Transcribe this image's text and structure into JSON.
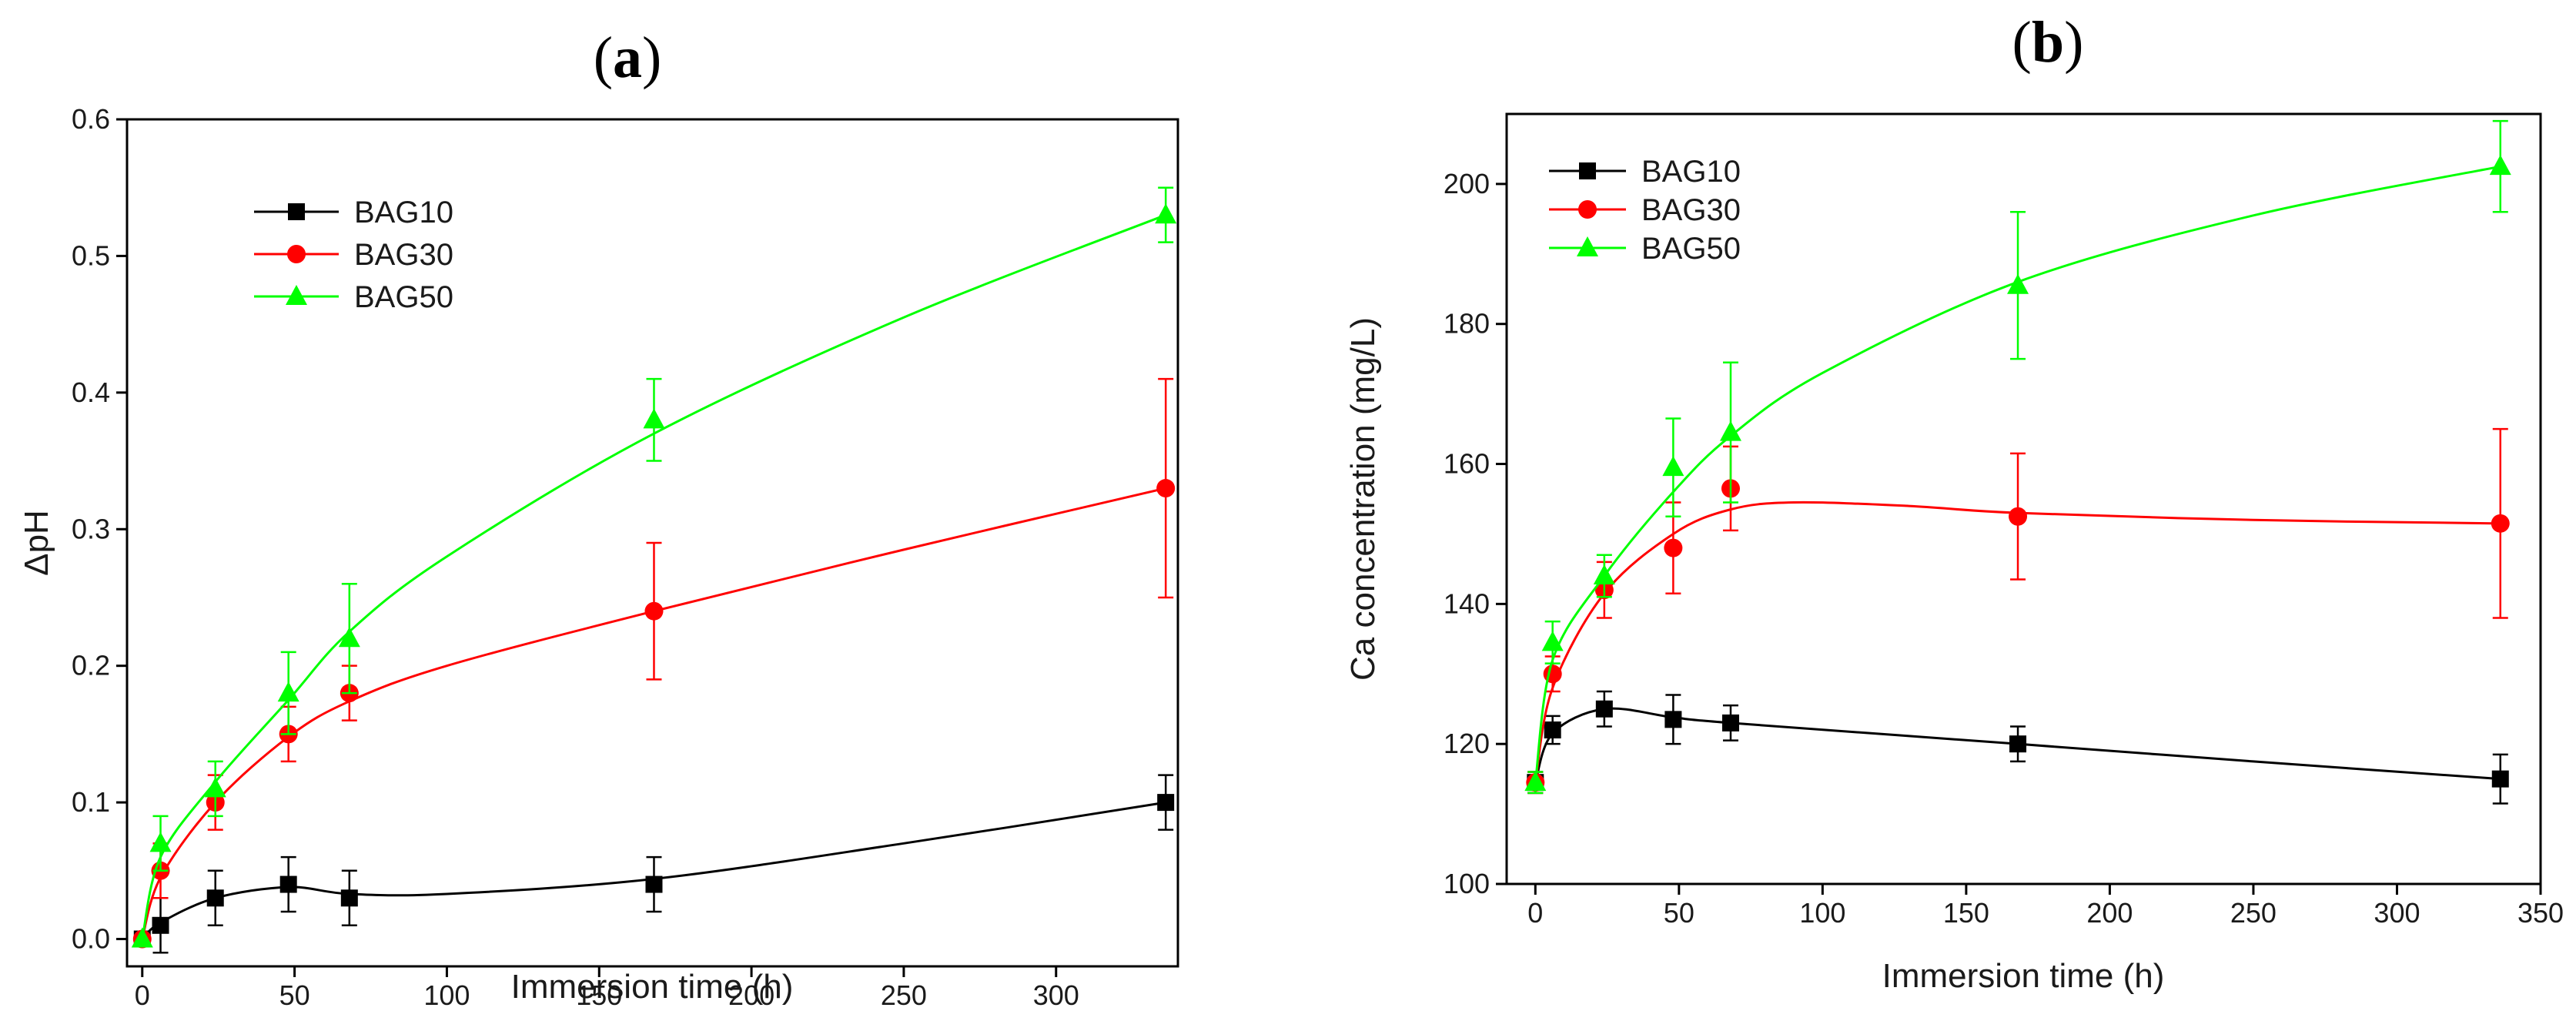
{
  "chart_data": [
    {
      "panel_label": "a",
      "type": "line",
      "xlabel": "Immersion time (h)",
      "ylabel": "ΔpH",
      "xlim": [
        -5,
        340
      ],
      "ylim": [
        -0.02,
        0.6
      ],
      "xticks": [
        0,
        50,
        100,
        150,
        200,
        250,
        300
      ],
      "yticks": [
        0.0,
        0.1,
        0.2,
        0.3,
        0.4,
        0.5,
        0.6
      ],
      "ytick_decimals": 1,
      "legend_position": "upper-left",
      "series": [
        {
          "name": "BAG10",
          "color": "#000000",
          "marker": "square",
          "x": [
            0,
            6,
            24,
            48,
            68,
            168,
            336
          ],
          "y": [
            0.0,
            0.01,
            0.03,
            0.04,
            0.03,
            0.04,
            0.1
          ],
          "err": [
            0.0,
            0.02,
            0.02,
            0.02,
            0.02,
            0.02,
            0.02
          ],
          "fit": [
            [
              0,
              0.0
            ],
            [
              6,
              0.012
            ],
            [
              24,
              0.03
            ],
            [
              48,
              0.038
            ],
            [
              68,
              0.033
            ],
            [
              100,
              0.033
            ],
            [
              168,
              0.044
            ],
            [
              250,
              0.07
            ],
            [
              336,
              0.1
            ]
          ]
        },
        {
          "name": "BAG30",
          "color": "#ff0000",
          "marker": "circle",
          "x": [
            0,
            6,
            24,
            48,
            68,
            168,
            336
          ],
          "y": [
            0.0,
            0.05,
            0.1,
            0.15,
            0.18,
            0.24,
            0.33
          ],
          "err": [
            0.0,
            0.02,
            0.02,
            0.02,
            0.02,
            0.05,
            0.08
          ],
          "fit": [
            [
              0,
              0.0
            ],
            [
              6,
              0.045
            ],
            [
              24,
              0.1
            ],
            [
              48,
              0.148
            ],
            [
              68,
              0.174
            ],
            [
              100,
              0.2
            ],
            [
              168,
              0.24
            ],
            [
              250,
              0.285
            ],
            [
              336,
              0.33
            ]
          ]
        },
        {
          "name": "BAG50",
          "color": "#00ff00",
          "marker": "triangle",
          "x": [
            0,
            6,
            24,
            48,
            68,
            168,
            336
          ],
          "y": [
            0.0,
            0.07,
            0.11,
            0.18,
            0.22,
            0.38,
            0.53
          ],
          "err": [
            0.0,
            0.02,
            0.02,
            0.03,
            0.04,
            0.03,
            0.02
          ],
          "fit": [
            [
              0,
              0.0
            ],
            [
              6,
              0.06
            ],
            [
              24,
              0.115
            ],
            [
              48,
              0.175
            ],
            [
              68,
              0.225
            ],
            [
              100,
              0.28
            ],
            [
              168,
              0.37
            ],
            [
              250,
              0.455
            ],
            [
              336,
              0.53
            ]
          ]
        }
      ]
    },
    {
      "panel_label": "b",
      "type": "line",
      "xlabel": "Immersion time (h)",
      "ylabel": "Ca concentration (mg/L)",
      "xlim": [
        -10,
        350
      ],
      "ylim": [
        100,
        210
      ],
      "xticks": [
        0,
        50,
        100,
        150,
        200,
        250,
        300,
        350
      ],
      "yticks": [
        100,
        120,
        140,
        160,
        180,
        200
      ],
      "ytick_decimals": 0,
      "legend_position": "upper-left",
      "series": [
        {
          "name": "BAG10",
          "color": "#000000",
          "marker": "square",
          "x": [
            0,
            6,
            24,
            48,
            68,
            168,
            336
          ],
          "y": [
            114.5,
            122,
            125,
            123.5,
            123,
            120,
            115
          ],
          "err": [
            1.5,
            2,
            2.5,
            3.5,
            2.5,
            2.5,
            3.5
          ],
          "fit": [
            [
              0,
              114.5
            ],
            [
              6,
              121.5
            ],
            [
              24,
              125
            ],
            [
              48,
              123.8
            ],
            [
              68,
              123
            ],
            [
              168,
              120
            ],
            [
              250,
              117.5
            ],
            [
              336,
              115
            ]
          ]
        },
        {
          "name": "BAG30",
          "color": "#ff0000",
          "marker": "circle",
          "x": [
            0,
            6,
            24,
            48,
            68,
            168,
            336
          ],
          "y": [
            114.5,
            130,
            142,
            148,
            156.5,
            152.5,
            151.5
          ],
          "err": [
            1.5,
            2.5,
            4,
            6.5,
            6,
            9,
            13.5
          ],
          "fit": [
            [
              0,
              114.5
            ],
            [
              6,
              128
            ],
            [
              24,
              141.5
            ],
            [
              48,
              150
            ],
            [
              68,
              153.5
            ],
            [
              90,
              154.5
            ],
            [
              130,
              154
            ],
            [
              168,
              153
            ],
            [
              250,
              152
            ],
            [
              336,
              151.5
            ]
          ]
        },
        {
          "name": "BAG50",
          "color": "#00ff00",
          "marker": "triangle",
          "x": [
            0,
            6,
            24,
            48,
            68,
            168,
            336
          ],
          "y": [
            114.5,
            134.5,
            144,
            159.5,
            164.5,
            185.5,
            202.5
          ],
          "err": [
            1.5,
            3,
            3,
            7,
            10,
            10.5,
            6.5
          ],
          "fit": [
            [
              0,
              114.5
            ],
            [
              6,
              132
            ],
            [
              24,
              144
            ],
            [
              48,
              156
            ],
            [
              68,
              164
            ],
            [
              100,
              173
            ],
            [
              168,
              186
            ],
            [
              250,
              195.5
            ],
            [
              336,
              202.5
            ]
          ]
        }
      ]
    }
  ]
}
